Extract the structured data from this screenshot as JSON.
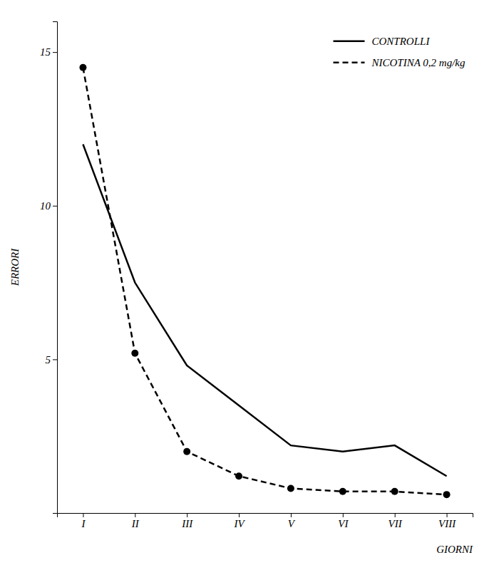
{
  "chart_data": {
    "type": "line",
    "categories": [
      "I",
      "II",
      "III",
      "IV",
      "V",
      "VI",
      "VII",
      "VIII"
    ],
    "x_label": "GIORNI",
    "y_label": "ERRORI",
    "ylim": [
      0,
      16
    ],
    "yticks": [
      5,
      10,
      15
    ],
    "grid": false,
    "legend": "upper right",
    "series": [
      {
        "name": "CONTROLLI",
        "color": "#000000",
        "line_style": "solid",
        "marker": "none",
        "values": [
          12.0,
          7.5,
          4.8,
          3.5,
          2.2,
          2.0,
          2.2,
          1.2
        ]
      },
      {
        "name": "NICOTINA 0,2 mg/kg",
        "color": "#000000",
        "line_style": "dashed",
        "marker": "circle",
        "values": [
          14.5,
          5.2,
          2.0,
          1.2,
          0.8,
          0.7,
          0.7,
          0.6
        ]
      }
    ]
  }
}
